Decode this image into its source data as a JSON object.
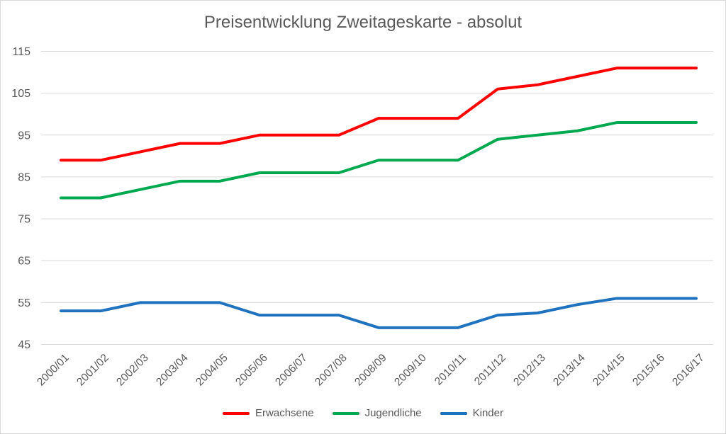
{
  "title": "Preisentwicklung Zweitageskarte - absolut",
  "chart_data": {
    "type": "line",
    "title": "Preisentwicklung Zweitageskarte - absolut",
    "categories": [
      "2000/01",
      "2001/02",
      "2002/03",
      "2003/04",
      "2004/05",
      "2005/06",
      "2006/07",
      "2007/08",
      "2008/09",
      "2009/10",
      "2010/11",
      "2011/12",
      "2012/13",
      "2013/14",
      "2014/15",
      "2015/16",
      "2016/17"
    ],
    "series": [
      {
        "name": "Erwachsene",
        "color": "#FF0000",
        "values": [
          89,
          89,
          91,
          93,
          93,
          95,
          95,
          95,
          99,
          99,
          99,
          106,
          107,
          109,
          111,
          111,
          111
        ]
      },
      {
        "name": "Jugendliche",
        "color": "#00A94F",
        "values": [
          80,
          80,
          82,
          84,
          84,
          86,
          86,
          86,
          89,
          89,
          89,
          94,
          95,
          96,
          98,
          98,
          98
        ]
      },
      {
        "name": "Kinder",
        "color": "#1F72BE",
        "values": [
          53,
          53,
          55,
          55,
          55,
          52,
          52,
          52,
          49,
          49,
          49,
          52,
          52.5,
          54.5,
          56,
          56,
          56
        ]
      }
    ],
    "xlabel": "",
    "ylabel": "",
    "ylim": [
      45,
      115
    ],
    "yticks": [
      45,
      55,
      65,
      75,
      85,
      95,
      105,
      115
    ],
    "grid": "horizontal",
    "legend_position": "bottom",
    "colors": {
      "text": "#595959",
      "gridline": "#D9D9D9",
      "border": "#D9D9D9",
      "background": "#FFFFFF"
    }
  }
}
